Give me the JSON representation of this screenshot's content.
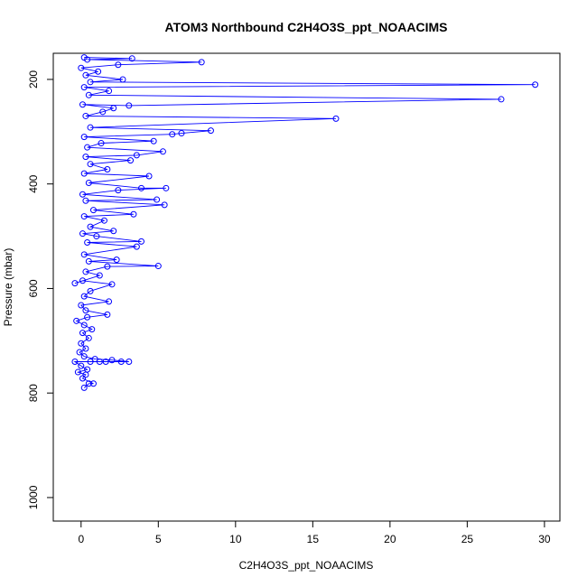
{
  "chart_data": {
    "type": "line",
    "title": "ATOM3 Northbound C2H4O3S_ppt_NOAACIMS",
    "xlabel": "C2H4O3S_ppt_NOAACIMS",
    "ylabel": "Pressure (mbar)",
    "xlim": [
      -1.8,
      31.0
    ],
    "ylim": [
      1045,
      150
    ],
    "y_reversed": true,
    "x_ticks": [
      0,
      5,
      10,
      15,
      20,
      25,
      30
    ],
    "y_ticks": [
      200,
      400,
      600,
      800,
      1000
    ],
    "grid": false,
    "legend": "none",
    "marker": "open-circle",
    "series": [
      {
        "color": "#0000ff",
        "points": [
          [
            0.2,
            790
          ],
          [
            0.5,
            782
          ],
          [
            0.8,
            782
          ],
          [
            0.1,
            772
          ],
          [
            0.3,
            765
          ],
          [
            -0.2,
            760
          ],
          [
            0.4,
            755
          ],
          [
            0.0,
            748
          ],
          [
            -0.4,
            740
          ],
          [
            0.6,
            740
          ],
          [
            1.2,
            740
          ],
          [
            1.6,
            740
          ],
          [
            2.6,
            740
          ],
          [
            3.1,
            740
          ],
          [
            2.0,
            737
          ],
          [
            0.9,
            735
          ],
          [
            0.2,
            730
          ],
          [
            -0.1,
            722
          ],
          [
            0.3,
            715
          ],
          [
            0.0,
            705
          ],
          [
            0.5,
            695
          ],
          [
            0.1,
            685
          ],
          [
            0.7,
            678
          ],
          [
            0.2,
            670
          ],
          [
            -0.3,
            662
          ],
          [
            0.4,
            655
          ],
          [
            1.7,
            650
          ],
          [
            0.3,
            642
          ],
          [
            0.0,
            632
          ],
          [
            1.8,
            625
          ],
          [
            0.2,
            615
          ],
          [
            0.6,
            605
          ],
          [
            2.0,
            592
          ],
          [
            0.1,
            585
          ],
          [
            -0.4,
            590
          ],
          [
            1.2,
            575
          ],
          [
            0.3,
            568
          ],
          [
            1.7,
            558
          ],
          [
            5.0,
            557
          ],
          [
            0.5,
            548
          ],
          [
            2.3,
            545
          ],
          [
            0.2,
            535
          ],
          [
            3.6,
            520
          ],
          [
            0.4,
            512
          ],
          [
            3.9,
            510
          ],
          [
            1.0,
            500
          ],
          [
            0.1,
            495
          ],
          [
            2.1,
            490
          ],
          [
            0.6,
            482
          ],
          [
            1.5,
            470
          ],
          [
            0.2,
            462
          ],
          [
            3.4,
            458
          ],
          [
            0.8,
            450
          ],
          [
            5.4,
            440
          ],
          [
            0.3,
            432
          ],
          [
            4.9,
            430
          ],
          [
            0.1,
            420
          ],
          [
            2.4,
            412
          ],
          [
            5.5,
            408
          ],
          [
            3.9,
            408
          ],
          [
            0.5,
            398
          ],
          [
            4.4,
            385
          ],
          [
            0.2,
            380
          ],
          [
            1.7,
            372
          ],
          [
            0.6,
            362
          ],
          [
            3.2,
            355
          ],
          [
            0.3,
            348
          ],
          [
            3.6,
            345
          ],
          [
            5.3,
            338
          ],
          [
            0.4,
            330
          ],
          [
            1.3,
            322
          ],
          [
            4.7,
            318
          ],
          [
            0.2,
            310
          ],
          [
            5.9,
            305
          ],
          [
            6.5,
            303
          ],
          [
            8.4,
            298
          ],
          [
            0.6,
            292
          ],
          [
            16.5,
            275
          ],
          [
            0.3,
            270
          ],
          [
            1.4,
            262
          ],
          [
            2.1,
            255
          ],
          [
            0.1,
            248
          ],
          [
            3.1,
            250
          ],
          [
            27.2,
            238
          ],
          [
            0.5,
            230
          ],
          [
            1.8,
            222
          ],
          [
            0.2,
            215
          ],
          [
            29.4,
            210
          ],
          [
            0.6,
            205
          ],
          [
            2.7,
            200
          ],
          [
            0.3,
            192
          ],
          [
            1.1,
            185
          ],
          [
            0.0,
            178
          ],
          [
            2.4,
            172
          ],
          [
            7.8,
            167
          ],
          [
            0.4,
            162
          ],
          [
            3.3,
            160
          ],
          [
            0.2,
            158
          ]
        ]
      }
    ]
  }
}
